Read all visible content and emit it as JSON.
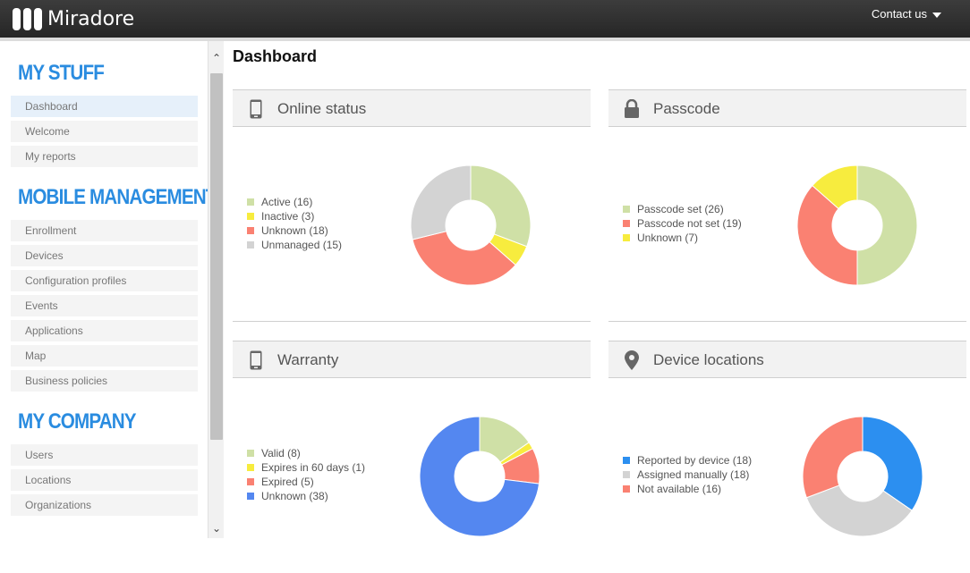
{
  "app": {
    "logo_text": "Miradore",
    "contact_label": "Contact us"
  },
  "sidebar": {
    "sections": [
      {
        "title": "MY STUFF",
        "items": [
          {
            "label": "Dashboard",
            "active": true
          },
          {
            "label": "Welcome"
          },
          {
            "label": "My reports"
          }
        ]
      },
      {
        "title": "MOBILE MANAGEMENT",
        "items": [
          {
            "label": "Enrollment"
          },
          {
            "label": "Devices"
          },
          {
            "label": "Configuration profiles"
          },
          {
            "label": "Events"
          },
          {
            "label": "Applications"
          },
          {
            "label": "Map"
          },
          {
            "label": "Business policies"
          }
        ]
      },
      {
        "title": "MY COMPANY",
        "items": [
          {
            "label": "Users"
          },
          {
            "label": "Locations"
          },
          {
            "label": "Organizations"
          }
        ]
      }
    ]
  },
  "page": {
    "title": "Dashboard"
  },
  "widgets": [
    {
      "title": "Online status",
      "icon": "phone-icon",
      "legend": [
        {
          "label": "Active (16)",
          "value": 16,
          "color": "#cfe0a6"
        },
        {
          "label": "Inactive (3)",
          "value": 3,
          "color": "#f7ec3e"
        },
        {
          "label": "Unknown (18)",
          "value": 18,
          "color": "#fa8172"
        },
        {
          "label": "Unmanaged (15)",
          "value": 15,
          "color": "#d3d3d3"
        }
      ]
    },
    {
      "title": "Passcode",
      "icon": "lock-icon",
      "legend": [
        {
          "label": "Passcode set (26)",
          "value": 26,
          "color": "#cfe0a6"
        },
        {
          "label": "Passcode not set (19)",
          "value": 19,
          "color": "#fa8172"
        },
        {
          "label": "Unknown (7)",
          "value": 7,
          "color": "#f7ec3e"
        }
      ]
    },
    {
      "title": "Warranty",
      "icon": "phone-icon",
      "legend": [
        {
          "label": "Valid (8)",
          "value": 8,
          "color": "#cfe0a6"
        },
        {
          "label": "Expires in 60 days (1)",
          "value": 1,
          "color": "#f7ec3e"
        },
        {
          "label": "Expired (5)",
          "value": 5,
          "color": "#fa8172"
        },
        {
          "label": "Unknown (38)",
          "value": 38,
          "color": "#5487f0"
        }
      ]
    },
    {
      "title": "Device locations",
      "icon": "map-pin-icon",
      "legend": [
        {
          "label": "Reported by device (18)",
          "value": 18,
          "color": "#2c8ff0"
        },
        {
          "label": "Assigned manually (18)",
          "value": 18,
          "color": "#d3d3d3"
        },
        {
          "label": "Not available (16)",
          "value": 16,
          "color": "#fa8172"
        }
      ]
    }
  ]
}
